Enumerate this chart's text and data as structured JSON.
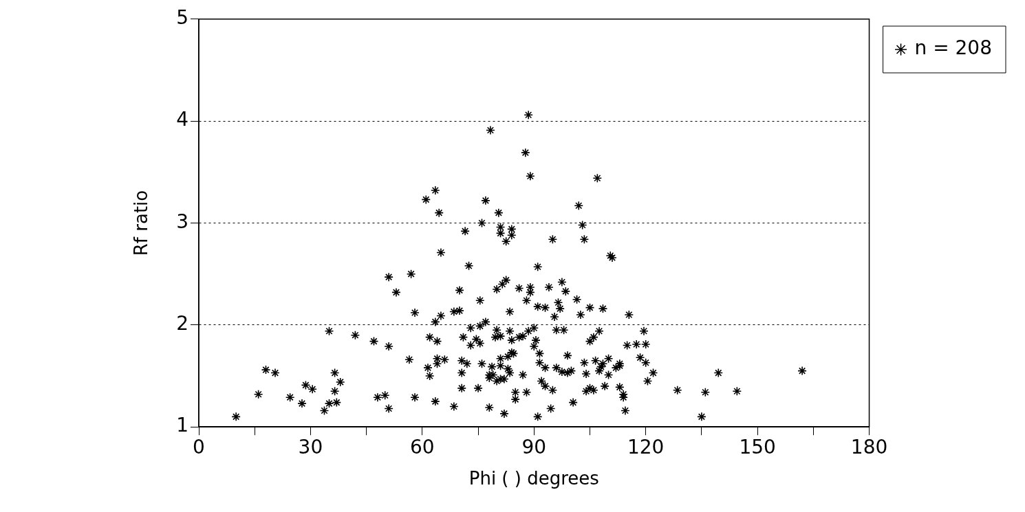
{
  "chart_data": {
    "type": "scatter",
    "xlabel": "Phi ( ) degrees",
    "ylabel": "Rf ratio",
    "xlim": [
      0,
      180
    ],
    "ylim": [
      1,
      5
    ],
    "xticks": [
      0,
      {
        "value": 15,
        "label": null
      },
      30,
      {
        "value": 45,
        "label": null
      },
      60,
      {
        "value": 75,
        "label": null
      },
      90,
      {
        "value": 105,
        "label": null
      },
      120,
      {
        "value": 135,
        "label": null
      },
      150,
      {
        "value": 165,
        "label": null
      },
      180
    ],
    "yticks": [
      1,
      2,
      3,
      4,
      5
    ],
    "grid": "y",
    "legend": "top right",
    "marker": "cross",
    "series": [
      {
        "name": "n = 208",
        "color": "#000000",
        "x": [
          10,
          16,
          18,
          20.5,
          24.5,
          27.7,
          28.7,
          30.5,
          33.7,
          35,
          35,
          36.5,
          36.5,
          37,
          38,
          42,
          47,
          48,
          50,
          51,
          51,
          51,
          53,
          56.5,
          57,
          58,
          58,
          61,
          61.5,
          62,
          62,
          63.5,
          63.5,
          63.5,
          64,
          64,
          64,
          64.5,
          65,
          65,
          68.5,
          68.5,
          70,
          70,
          70.6,
          70.6,
          71.5,
          72.5,
          73,
          73,
          75,
          74.5,
          75.5,
          75.5,
          76,
          77,
          77,
          76,
          78,
          78.3,
          78.7,
          79.6,
          80,
          80.5,
          81,
          81,
          81.5,
          82.5,
          82,
          82.5,
          83,
          83.5,
          84,
          84,
          84,
          84.5,
          86,
          85,
          85,
          86,
          87,
          87.7,
          88,
          88,
          88.5,
          89,
          89,
          89,
          90,
          90,
          91,
          91,
          91,
          92,
          93,
          93,
          94,
          94.5,
          95,
          95.5,
          96,
          96.5,
          97,
          97.5,
          98,
          98.5,
          99,
          100,
          100.5,
          101.5,
          102,
          102.5,
          103,
          103.5,
          103.5,
          104,
          105,
          105,
          106,
          106.5,
          107,
          107.5,
          108,
          108.5,
          109,
          110,
          110.5,
          111,
          112,
          113,
          113,
          114,
          114,
          114.5,
          115,
          115.5,
          117.5,
          118.5,
          119.5,
          120,
          120.5,
          122,
          128.5,
          135,
          136,
          139.5,
          144.5,
          162,
          81,
          84,
          81,
          83,
          82,
          83.5,
          81,
          88.5,
          87,
          83.5,
          90.5,
          91.5,
          91.5,
          93,
          95,
          96,
          97.5,
          99,
          104,
          105,
          107.5,
          108.5,
          106,
          110,
          78,
          79,
          78,
          80,
          66,
          71,
          72,
          75.5,
          80,
          81,
          70.6,
          113,
          120
        ],
        "values": [
          1.1,
          1.32,
          1.56,
          1.53,
          1.29,
          1.23,
          1.41,
          1.37,
          1.16,
          1.23,
          1.94,
          1.35,
          1.53,
          1.24,
          1.44,
          1.9,
          1.84,
          1.29,
          1.31,
          1.79,
          2.47,
          1.18,
          2.32,
          1.66,
          2.5,
          2.12,
          1.29,
          3.23,
          1.58,
          1.88,
          1.5,
          2.03,
          3.32,
          1.25,
          1.84,
          1.67,
          1.62,
          3.1,
          2.71,
          2.09,
          1.2,
          2.13,
          2.34,
          2.14,
          1.65,
          1.53,
          2.92,
          2.58,
          1.97,
          1.8,
          1.38,
          1.86,
          2.24,
          1.99,
          3.0,
          2.03,
          3.22,
          1.62,
          1.19,
          3.91,
          1.59,
          1.88,
          2.35,
          3.1,
          2.96,
          2.9,
          2.4,
          2.44,
          1.13,
          2.82,
          1.69,
          1.94,
          2.94,
          2.88,
          1.85,
          1.72,
          2.36,
          1.34,
          1.27,
          1.88,
          1.51,
          3.69,
          2.24,
          1.34,
          4.06,
          3.46,
          2.37,
          2.32,
          1.79,
          1.97,
          2.57,
          1.1,
          2.18,
          1.45,
          1.58,
          2.17,
          2.37,
          1.18,
          2.84,
          2.08,
          1.95,
          2.22,
          2.16,
          2.42,
          1.95,
          2.33,
          1.7,
          1.55,
          1.24,
          2.25,
          3.17,
          2.1,
          2.98,
          2.84,
          1.63,
          1.35,
          1.84,
          2.17,
          1.36,
          1.65,
          3.44,
          1.94,
          1.59,
          2.16,
          1.4,
          1.67,
          2.68,
          2.66,
          1.58,
          1.62,
          1.39,
          1.32,
          1.29,
          1.16,
          1.8,
          2.1,
          1.81,
          1.68,
          1.94,
          1.81,
          1.45,
          1.53,
          1.36,
          1.1,
          1.34,
          1.53,
          1.35,
          1.55,
          1.89,
          1.73,
          1.6,
          1.57,
          1.47,
          1.53,
          1.47,
          1.94,
          1.89,
          2.13,
          1.85,
          1.72,
          1.63,
          1.4,
          1.36,
          1.58,
          1.54,
          1.53,
          1.52,
          1.38,
          1.55,
          1.62,
          1.88,
          1.51,
          1.51,
          1.51,
          1.48,
          1.45,
          1.66,
          1.88,
          1.62,
          1.82,
          1.95,
          1.67,
          1.38,
          1.6,
          1.63
        ]
      }
    ]
  }
}
